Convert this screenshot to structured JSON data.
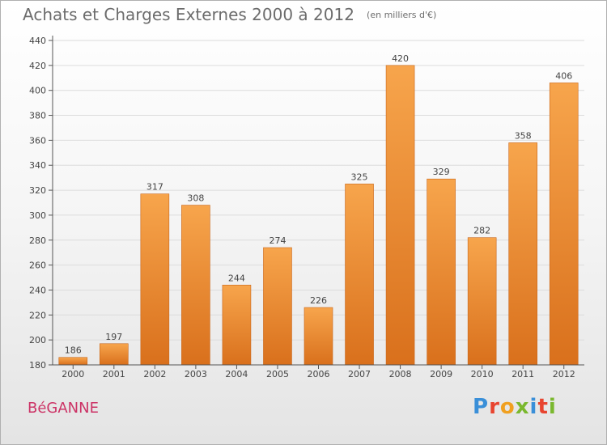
{
  "header": {
    "title": "Achats et Charges Externes 2000 à 2012",
    "subtitle": "(en milliers d'€)"
  },
  "footer": {
    "commune": "BéGANNE",
    "logo_letters": [
      "P",
      "r",
      "o",
      "x",
      "i",
      "t",
      "i"
    ],
    "logo_colors": [
      "#3a8fd8",
      "#e8442f",
      "#f0a020",
      "#7ab82e",
      "#3a8fd8",
      "#e8442f",
      "#7ab82e"
    ]
  },
  "colors": {
    "bar_top": "#f7a54c",
    "bar_bottom": "#d9701c",
    "bar_edge": "#c9661a",
    "grid": "#dcdcdc",
    "axis": "#555555",
    "label": "#444444"
  },
  "chart_data": {
    "type": "bar",
    "categories": [
      "2000",
      "2001",
      "2002",
      "2003",
      "2004",
      "2005",
      "2006",
      "2007",
      "2008",
      "2009",
      "2010",
      "2011",
      "2012"
    ],
    "values": [
      186,
      197,
      317,
      308,
      244,
      274,
      226,
      325,
      420,
      329,
      282,
      358,
      406
    ],
    "ylim": [
      180,
      440
    ],
    "yticks": [
      180,
      200,
      220,
      240,
      260,
      280,
      300,
      320,
      340,
      360,
      380,
      400,
      420,
      440
    ],
    "grid": true,
    "data_labels": true
  }
}
